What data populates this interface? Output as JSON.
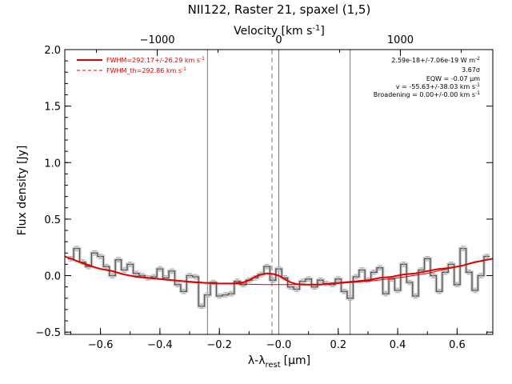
{
  "chart_data": {
    "type": "line",
    "title": "NII122, Raster 21, spaxel (1,5)",
    "xlabel": "λ-λrest [μm]",
    "xlabel_main": "λ-λ",
    "xlabel_sub": "rest",
    "xlabel_unit": "[μm]",
    "ylabel": "Flux density [Jy]",
    "top_xlabel": "Velocity [km s-1]",
    "top_xlabel_main": "Velocity [km s",
    "top_xlabel_sup": "-1",
    "top_xlabel_close": "]",
    "xlim": [
      -0.72,
      0.72
    ],
    "ylim": [
      -0.52,
      2.0
    ],
    "x_ticks": [
      -0.6,
      -0.4,
      -0.2,
      0.0,
      0.2,
      0.4,
      0.6
    ],
    "x_tick_labels": [
      "−0.6",
      "−0.4",
      "−0.2",
      "−0.0",
      "0.2",
      "0.4",
      "0.6"
    ],
    "y_ticks": [
      -0.5,
      0.0,
      0.5,
      1.0,
      1.5,
      2.0
    ],
    "y_tick_labels": [
      "−0.5",
      "0.0",
      "0.5",
      "1.0",
      "1.5",
      "2.0"
    ],
    "top_ticks_velocity": [
      -1000,
      0,
      1000
    ],
    "top_tick_labels": [
      "−1000",
      "0",
      "1000"
    ],
    "velocity_per_micron": 2445,
    "vertical_lines": [
      {
        "x": -0.24,
        "style": "solid"
      },
      {
        "x": 0.0,
        "style": "solid"
      },
      {
        "x": 0.24,
        "style": "solid"
      },
      {
        "x": -0.023,
        "style": "dashed"
      }
    ],
    "series": [
      {
        "name": "spectrum",
        "style": "step",
        "color": "#555555",
        "x": [
          -0.7,
          -0.68,
          -0.66,
          -0.64,
          -0.62,
          -0.6,
          -0.58,
          -0.56,
          -0.54,
          -0.52,
          -0.5,
          -0.48,
          -0.46,
          -0.44,
          -0.42,
          -0.4,
          -0.38,
          -0.36,
          -0.34,
          -0.32,
          -0.3,
          -0.28,
          -0.26,
          -0.24,
          -0.22,
          -0.2,
          -0.18,
          -0.16,
          -0.14,
          -0.12,
          -0.1,
          -0.08,
          -0.06,
          -0.04,
          -0.02,
          0.0,
          0.02,
          0.04,
          0.06,
          0.08,
          0.1,
          0.12,
          0.14,
          0.16,
          0.18,
          0.2,
          0.22,
          0.24,
          0.26,
          0.28,
          0.3,
          0.32,
          0.34,
          0.36,
          0.38,
          0.4,
          0.42,
          0.44,
          0.46,
          0.48,
          0.5,
          0.52,
          0.54,
          0.56,
          0.58,
          0.6,
          0.62,
          0.64,
          0.66,
          0.68,
          0.7
        ],
        "y": [
          0.15,
          0.24,
          0.12,
          0.08,
          0.2,
          0.17,
          0.08,
          0.0,
          0.14,
          0.05,
          0.1,
          0.02,
          0.0,
          -0.02,
          -0.01,
          0.06,
          -0.02,
          0.04,
          -0.08,
          -0.14,
          0.0,
          -0.01,
          -0.27,
          -0.17,
          -0.06,
          -0.18,
          -0.17,
          -0.16,
          -0.05,
          -0.08,
          -0.04,
          -0.02,
          0.01,
          0.08,
          -0.04,
          0.06,
          -0.02,
          -0.1,
          -0.12,
          -0.05,
          -0.03,
          -0.1,
          -0.04,
          -0.07,
          -0.08,
          -0.03,
          -0.14,
          -0.2,
          -0.01,
          0.05,
          -0.04,
          0.03,
          0.07,
          -0.16,
          -0.03,
          -0.13,
          0.1,
          -0.06,
          -0.18,
          0.05,
          0.15,
          0.0,
          -0.14,
          0.03,
          0.1,
          -0.08,
          0.24,
          0.03,
          -0.13,
          0.0,
          0.17
        ],
        "error": 0.02
      },
      {
        "name": "FWHM=292.17+/-26.29 km s-1",
        "style": "line",
        "color": "#e00000",
        "x": [
          -0.72,
          -0.68,
          -0.64,
          -0.6,
          -0.56,
          -0.52,
          -0.48,
          -0.44,
          -0.4,
          -0.36,
          -0.32,
          -0.28,
          -0.24,
          -0.2,
          -0.16,
          -0.12,
          -0.1,
          -0.08,
          -0.06,
          -0.04,
          -0.02,
          0.0,
          0.02,
          0.04,
          0.06,
          0.08,
          0.1,
          0.14,
          0.18,
          0.22,
          0.26,
          0.3,
          0.34,
          0.38,
          0.42,
          0.46,
          0.5,
          0.54,
          0.58,
          0.62,
          0.66,
          0.7,
          0.72
        ],
        "y": [
          0.17,
          0.13,
          0.09,
          0.06,
          0.04,
          0.01,
          -0.01,
          -0.02,
          -0.03,
          -0.04,
          -0.05,
          -0.06,
          -0.065,
          -0.07,
          -0.07,
          -0.06,
          -0.04,
          -0.01,
          0.01,
          0.02,
          0.015,
          0.0,
          -0.03,
          -0.06,
          -0.075,
          -0.08,
          -0.08,
          -0.08,
          -0.07,
          -0.06,
          -0.05,
          -0.04,
          -0.02,
          -0.01,
          0.01,
          0.02,
          0.04,
          0.06,
          0.07,
          0.09,
          0.12,
          0.14,
          0.15
        ]
      },
      {
        "name": "FWHM_th=292.86 km s-1",
        "style": "dashed",
        "color": "#e00000",
        "x": [],
        "y": []
      }
    ],
    "baseline": {
      "color": "#e00000",
      "x": [
        -0.72,
        -0.6,
        -0.5,
        -0.4,
        -0.3,
        -0.2,
        -0.12,
        -0.05,
        0.0,
        0.05,
        0.1,
        0.2,
        0.3,
        0.4,
        0.5,
        0.6,
        0.72
      ],
      "y": [
        0.17,
        0.06,
        0.0,
        -0.03,
        -0.05,
        -0.07,
        -0.075,
        -0.08,
        -0.08,
        -0.08,
        -0.08,
        -0.07,
        -0.05,
        -0.02,
        0.02,
        0.08,
        0.15
      ]
    },
    "legend": {
      "placement": "top-left",
      "entries": [
        "FWHM=292.17+/-26.29 km s-1",
        "FWHM_th=292.86 km s-1"
      ]
    },
    "annotations": [
      "2.59e-18+/-7.06e-19 W m-2",
      "3.67σ",
      "EQW = -0.07 μm",
      "v = -55.63+/-38.03 km s-1",
      "Broadening = 0.00+/-0.00 km s-1"
    ],
    "grid": false
  },
  "legend_text": {
    "fit_main": "FWHM=292.17+/-26.29 km s",
    "fit_sup": "-1",
    "th_main": "FWHM_th=292.86 km s",
    "th_sup": "-1"
  },
  "annotation_text": {
    "flux_main": "2.59e-18+/-7.06e-19 W m",
    "flux_sup": "-2",
    "sigma": "3.67σ",
    "eqw": "EQW = -0.07 μm",
    "vel_main": "v = -55.63+/-38.03 km s",
    "vel_sup": "-1",
    "broad_main": "Broadening = 0.00+/-0.00 km s",
    "broad_sup": "-1"
  }
}
